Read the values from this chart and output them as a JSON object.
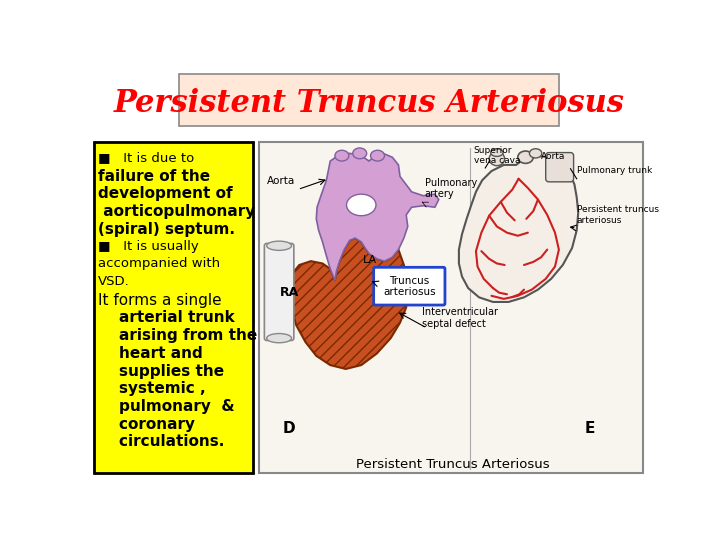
{
  "title": "Persistent Truncus Arteriosus",
  "title_color": "#FF0000",
  "title_bg_color": "#FFE8D8",
  "title_border_color": "#888888",
  "title_fontsize": 22,
  "slide_bg": "#FFFFFF",
  "text_box_bg": "#FFFF00",
  "text_box_border": "#000000",
  "image_box_bg": "#FFFFFF",
  "image_box_border": "#888888",
  "image_caption": "Persistent Truncus Arteriosus",
  "text_content": [
    {
      "text": "■   It is due to",
      "bold": false,
      "size": 9.5
    },
    {
      "text": "failure of the",
      "bold": true,
      "size": 11
    },
    {
      "text": "development of",
      "bold": true,
      "size": 11
    },
    {
      "text": " aorticopulmonary",
      "bold": true,
      "size": 11
    },
    {
      "text": "(spiral) septum.",
      "bold": true,
      "size": 11
    },
    {
      "text": "■   It is usually",
      "bold": false,
      "size": 9.5
    },
    {
      "text": "accompanied with",
      "bold": false,
      "size": 9.5
    },
    {
      "text": "VSD.",
      "bold": false,
      "size": 9.5
    },
    {
      "text": "It forms a single",
      "bold": false,
      "size": 11
    },
    {
      "text": "    arterial trunk",
      "bold": true,
      "size": 11
    },
    {
      "text": "    arising from the",
      "bold": true,
      "size": 11
    },
    {
      "text": "    heart and",
      "bold": true,
      "size": 11
    },
    {
      "text": "    supplies the",
      "bold": true,
      "size": 11
    },
    {
      "text": "    systemic ,",
      "bold": true,
      "size": 11
    },
    {
      "text": "    pulmonary  &",
      "bold": true,
      "size": 11
    },
    {
      "text": "    coronary",
      "bold": true,
      "size": 11
    },
    {
      "text": "    circulations.",
      "bold": true,
      "size": 11
    }
  ]
}
